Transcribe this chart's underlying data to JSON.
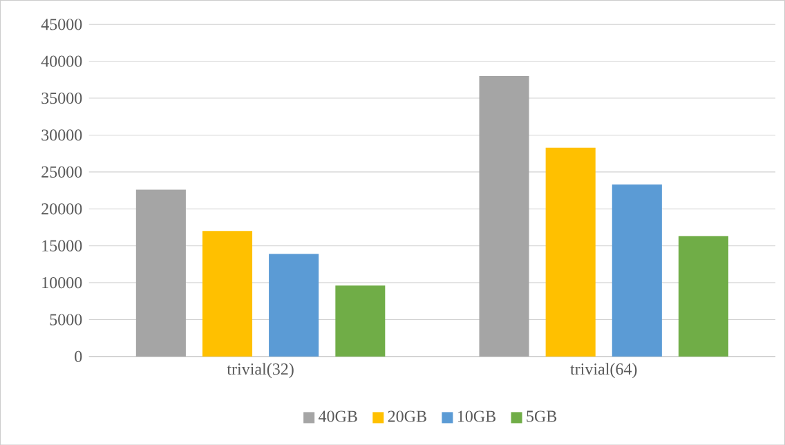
{
  "chart_data": {
    "type": "bar",
    "categories": [
      "trivial(32)",
      "trivial(64)"
    ],
    "series": [
      {
        "name": "40GB",
        "color": "#a5a5a5",
        "values": [
          22600,
          38000
        ]
      },
      {
        "name": "20GB",
        "color": "#ffc000",
        "values": [
          17000,
          28300
        ]
      },
      {
        "name": "10GB",
        "color": "#5b9bd5",
        "values": [
          13900,
          23300
        ]
      },
      {
        "name": "5GB",
        "color": "#70ad47",
        "values": [
          9600,
          16300
        ]
      }
    ],
    "ylim": [
      0,
      45000
    ],
    "yticks": [
      0,
      5000,
      10000,
      15000,
      20000,
      25000,
      30000,
      35000,
      40000,
      45000
    ],
    "grid": "y",
    "legend": "bottom"
  }
}
